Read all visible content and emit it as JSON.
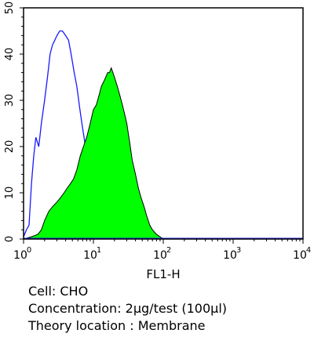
{
  "chart_data": {
    "type": "area",
    "xlabel": "FL1-H",
    "ylabel": "",
    "title": "",
    "x_scale": "log",
    "xlim": [
      1,
      10000
    ],
    "ylim": [
      0,
      50
    ],
    "grid": false,
    "legend": "none",
    "x_ticks": [
      {
        "base": "10",
        "exp": "0",
        "value": 1
      },
      {
        "base": "10",
        "exp": "1",
        "value": 10
      },
      {
        "base": "10",
        "exp": "2",
        "value": 100
      },
      {
        "base": "10",
        "exp": "3",
        "value": 1000
      },
      {
        "base": "10",
        "exp": "4",
        "value": 10000
      }
    ],
    "y_ticks": [
      {
        "label": "0",
        "value": 0
      },
      {
        "label": "10",
        "value": 10
      },
      {
        "label": "20",
        "value": 20
      },
      {
        "label": "30",
        "value": 30
      },
      {
        "label": "40",
        "value": 40
      },
      {
        "label": "50",
        "value": 50
      }
    ],
    "series": [
      {
        "style": "outline",
        "color": "#1a1aff",
        "x": [
          1.0,
          1.1,
          1.2,
          1.3,
          1.4,
          1.5,
          1.65,
          1.8,
          2.0,
          2.2,
          2.4,
          2.6,
          2.8,
          3.0,
          3.3,
          3.6,
          4.0,
          4.4,
          4.8,
          5.3,
          5.8,
          6.4,
          7.0,
          7.7,
          8.5,
          9.3,
          10.2,
          11.2,
          12.5,
          14.0,
          16.0,
          18.0,
          20.0
        ],
        "y": [
          0.5,
          2,
          3,
          12,
          18,
          22,
          20,
          25,
          30,
          35,
          40,
          42,
          43,
          44,
          45,
          45,
          44,
          43,
          40,
          36,
          33,
          28,
          24,
          20,
          15,
          11,
          8,
          5,
          3,
          2,
          1,
          0.5,
          0
        ]
      },
      {
        "style": "filled",
        "color": "#00ff00",
        "x": [
          1.0,
          1.3,
          1.6,
          1.8,
          2.0,
          2.3,
          2.6,
          3.0,
          3.4,
          3.8,
          4.2,
          4.7,
          5.2,
          5.8,
          6.5,
          7.2,
          8.0,
          9.0,
          10.0,
          11.0,
          12.0,
          13.0,
          14.0,
          15.0,
          16.0,
          17.0,
          18.0,
          19.0,
          20.0,
          22.0,
          24.0,
          26.0,
          28.0,
          30.0,
          33.0,
          36.0,
          40.0,
          44.0,
          48.0,
          53.0,
          58.0,
          64.0,
          70.0,
          80.0,
          90.0,
          100.0
        ],
        "y": [
          0,
          0.5,
          1,
          2,
          4,
          6,
          7,
          8,
          9,
          10,
          11,
          12,
          13,
          15,
          18,
          20,
          22,
          25,
          28,
          29,
          31,
          33,
          34,
          35,
          36,
          36,
          37,
          36,
          35,
          33,
          31,
          29,
          27,
          25,
          21,
          17,
          14,
          11,
          9,
          7,
          5,
          3,
          2,
          1,
          0.5,
          0
        ]
      }
    ]
  },
  "caption": {
    "cell": "Cell: CHO",
    "concentration": "Concentration: 2μg/test (100μl)",
    "location": "Theory location : Membrane"
  }
}
